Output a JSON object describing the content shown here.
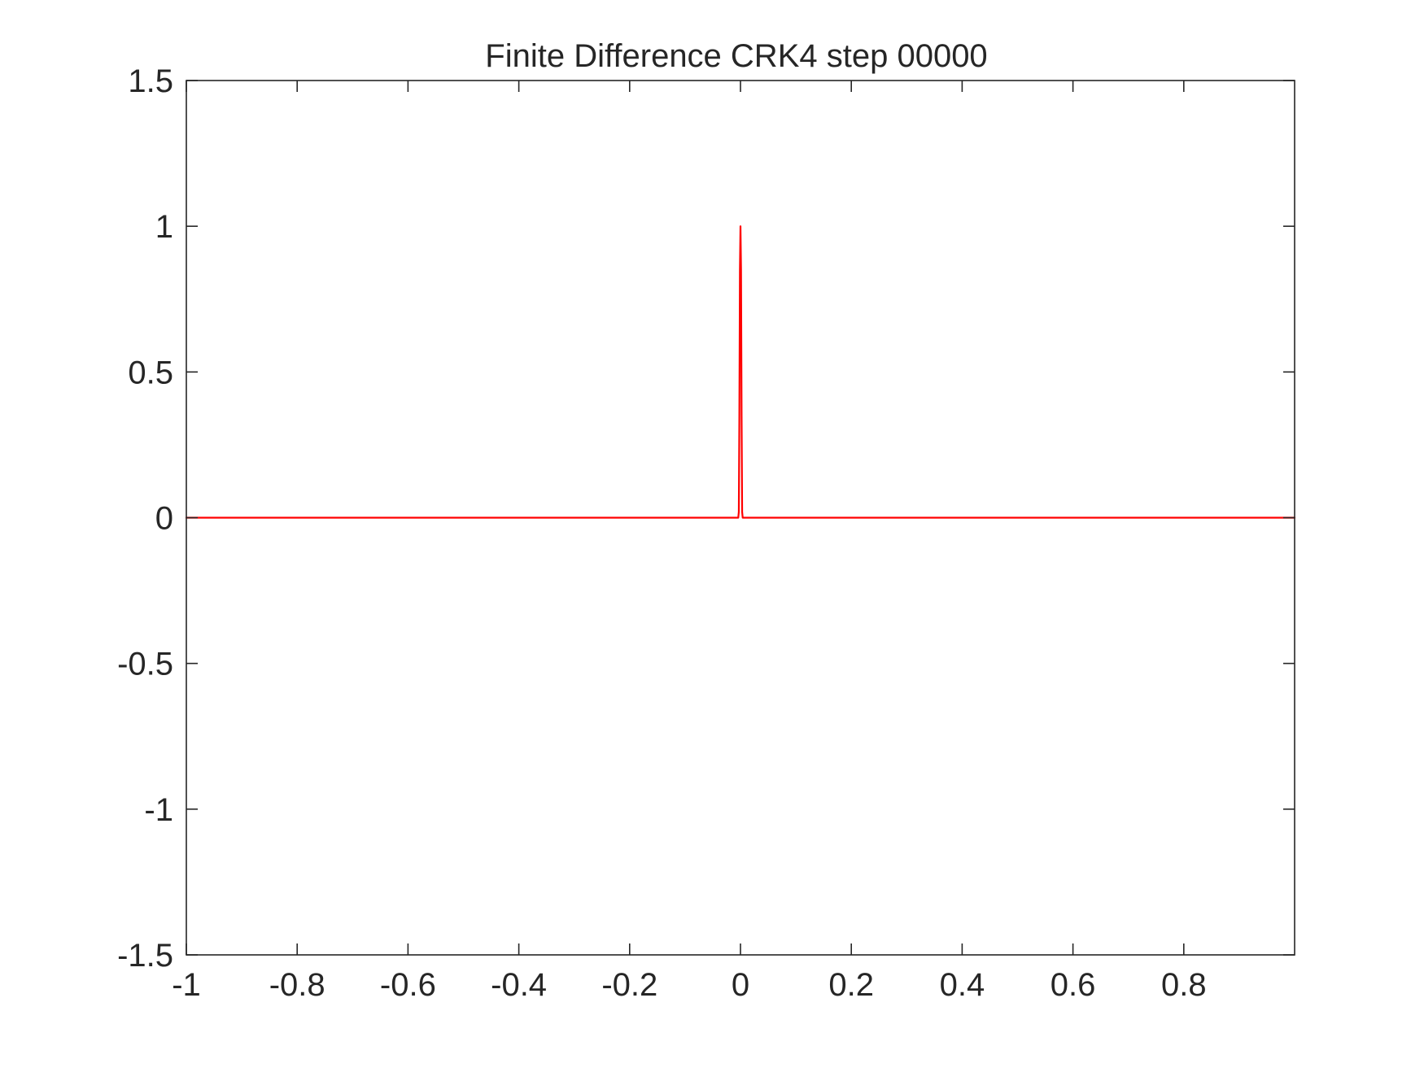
{
  "chart_data": {
    "type": "line",
    "title": "Finite Difference CRK4 step 00000",
    "xlabel": "",
    "ylabel": "",
    "xlim": [
      -1,
      1
    ],
    "ylim": [
      -1.5,
      1.5
    ],
    "xticks": [
      -1,
      -0.8,
      -0.6,
      -0.4,
      -0.2,
      0,
      0.2,
      0.4,
      0.6,
      0.8
    ],
    "xtick_labels": [
      "-1",
      "-0.8",
      "-0.6",
      "-0.4",
      "-0.2",
      "0",
      "0.2",
      "0.4",
      "0.6",
      "0.8"
    ],
    "yticks": [
      -1.5,
      -1,
      -0.5,
      0,
      0.5,
      1,
      1.5
    ],
    "ytick_labels": [
      "-1.5",
      "-1",
      "-0.5",
      "0",
      "0.5",
      "1",
      "1.5"
    ],
    "grid": false,
    "box": true,
    "series": [
      {
        "color": "#ff0000",
        "x": [
          -1,
          -0.004,
          -0.003,
          -0.002,
          -0.001,
          0,
          0.001,
          0.002,
          0.003,
          0.004,
          1
        ],
        "y": [
          0,
          0,
          0.02,
          0.35,
          0.85,
          1,
          0.85,
          0.35,
          0.02,
          0,
          0
        ]
      }
    ],
    "axis_color": "#262626"
  }
}
